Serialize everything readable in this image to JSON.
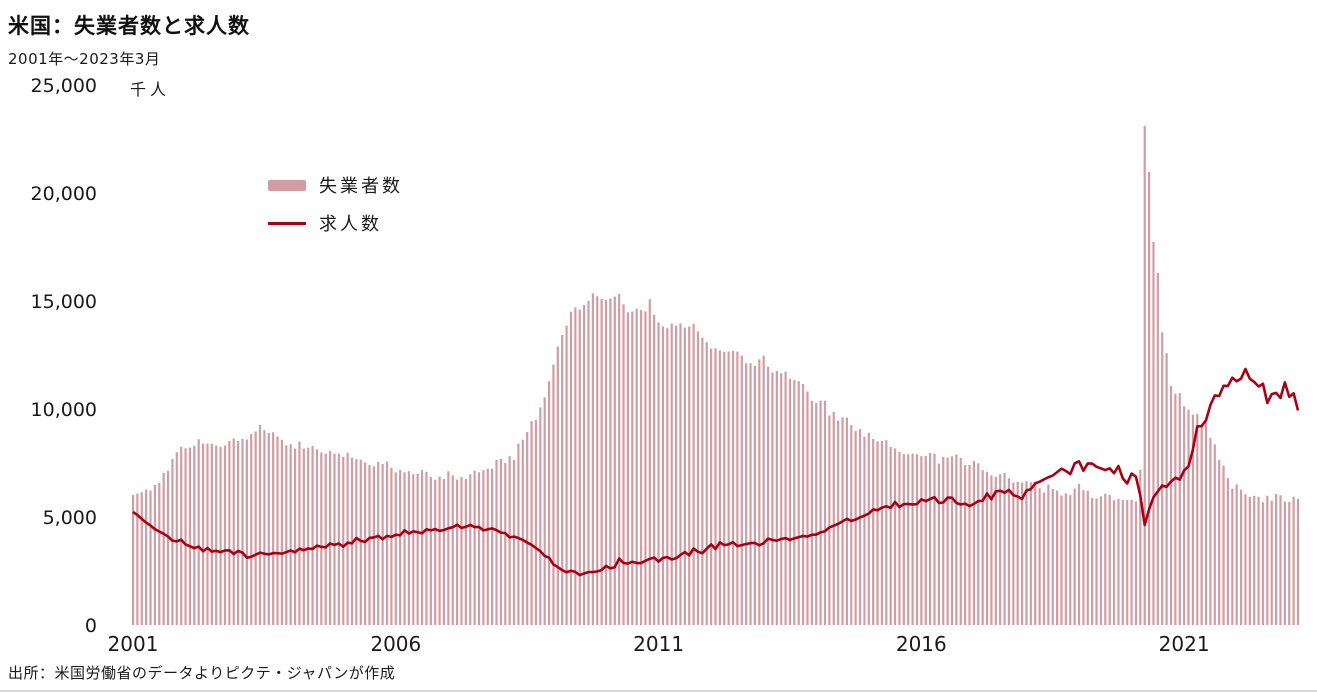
{
  "header": {
    "title": "米国：失業者数と求人数",
    "subtitle": "2001年～2023年3月",
    "unit": "千人"
  },
  "footer": {
    "source": "出所：米国労働省のデータよりピクテ・ジャパンが作成"
  },
  "colors": {
    "bar": "#cf9da3",
    "line": "#a80015",
    "text": "#1a1a1a"
  },
  "chart_data": {
    "type": "bar+line",
    "title": "米国：失業者数と求人数",
    "subtitle": "2001年～2023年3月",
    "ylabel": "千人",
    "xlabel": "",
    "frequency": "monthly",
    "x_start": "2001-01",
    "x_end": "2023-03",
    "ylim": [
      0,
      25000
    ],
    "y_ticks": [
      0,
      5000,
      10000,
      15000,
      20000,
      25000
    ],
    "x_ticks": [
      2001,
      2006,
      2011,
      2016,
      2021
    ],
    "grid": false,
    "legend_position": "top-left-inside",
    "series": [
      {
        "name": "失業者数",
        "type": "bar",
        "color": "#cf9da3",
        "values": [
          6023,
          6089,
          6141,
          6271,
          6226,
          6484,
          6583,
          7042,
          7142,
          7694,
          8003,
          8258,
          8182,
          8215,
          8304,
          8599,
          8399,
          8393,
          8390,
          8304,
          8251,
          8307,
          8520,
          8640,
          8520,
          8618,
          8588,
          8842,
          8957,
          9266,
          9011,
          8896,
          8921,
          8732,
          8576,
          8317,
          8370,
          8167,
          8491,
          8170,
          8212,
          8286,
          8136,
          7990,
          7927,
          8061,
          7932,
          7934,
          7784,
          7980,
          7737,
          7672,
          7651,
          7524,
          7406,
          7345,
          7553,
          7453,
          7566,
          7279,
          7064,
          7184,
          7072,
          7120,
          6980,
          7001,
          7175,
          7091,
          6847,
          6727,
          6872,
          6762,
          7116,
          6927,
          6731,
          6850,
          6766,
          6979,
          7149,
          7067,
          7170,
          7237,
          7240,
          7645,
          7685,
          7497,
          7822,
          7637,
          8395,
          8575,
          8937,
          9438,
          9494,
          10074,
          10538,
          11286,
          12058,
          12898,
          13426,
          13853,
          14499,
          14707,
          14601,
          14814,
          15009,
          15352,
          15219,
          15098,
          15046,
          15113,
          15202,
          15325,
          14849,
          14474,
          14512,
          14648,
          14579,
          14516,
          15081,
          14348,
          14013,
          13820,
          13737,
          13957,
          13855,
          13962,
          13763,
          13818,
          13948,
          13594,
          13302,
          13093,
          12797,
          12813,
          12713,
          12646,
          12660,
          12692,
          12656,
          12471,
          12115,
          12124,
          12005,
          12298,
          12470,
          11954,
          11689,
          11760,
          11654,
          11735,
          11398,
          11334,
          11285,
          11161,
          10814,
          10376,
          10280,
          10387,
          10384,
          9702,
          9859,
          9460,
          9608,
          9599,
          9262,
          8990,
          9071,
          8718,
          8903,
          8610,
          8504,
          8526,
          8555,
          8245,
          8176,
          8023,
          7915,
          7904,
          7935,
          7907,
          7820,
          7828,
          7962,
          7934,
          7467,
          7783,
          7751,
          7812,
          7901,
          7740,
          7409,
          7410,
          7596,
          7488,
          7173,
          7095,
          6929,
          6855,
          6978,
          7041,
          6796,
          6595,
          6620,
          6585,
          6657,
          6605,
          6562,
          6330,
          6139,
          6498,
          6297,
          6219,
          5999,
          6093,
          6023,
          6318,
          6525,
          6241,
          6206,
          5878,
          5857,
          5959,
          6081,
          6024,
          5779,
          5839,
          5786,
          5787,
          5796,
          5717,
          7185,
          23109,
          20975,
          17742,
          16301,
          13550,
          12580,
          11061,
          10710,
          10736,
          10120,
          9972,
          9740,
          9773,
          9255,
          9400,
          8668,
          8363,
          7653,
          7380,
          6801,
          6314,
          6513,
          6266,
          6055,
          5932,
          5983,
          5939,
          5687,
          5982,
          5753,
          6063,
          6011,
          5717,
          5694,
          5936,
          5839
        ]
      },
      {
        "name": "求人数",
        "type": "line",
        "color": "#a80015",
        "values": [
          5234,
          5091,
          4912,
          4742,
          4602,
          4436,
          4329,
          4221,
          4095,
          3902,
          3874,
          3948,
          3727,
          3650,
          3555,
          3631,
          3414,
          3565,
          3399,
          3434,
          3374,
          3451,
          3459,
          3287,
          3427,
          3350,
          3114,
          3160,
          3254,
          3351,
          3297,
          3271,
          3329,
          3327,
          3303,
          3377,
          3449,
          3366,
          3537,
          3462,
          3541,
          3522,
          3675,
          3619,
          3594,
          3772,
          3711,
          3773,
          3626,
          3810,
          3779,
          4029,
          3894,
          3846,
          4032,
          4054,
          4127,
          3970,
          4125,
          4078,
          4179,
          4152,
          4386,
          4233,
          4342,
          4296,
          4248,
          4432,
          4383,
          4441,
          4354,
          4399,
          4477,
          4526,
          4641,
          4496,
          4545,
          4631,
          4535,
          4540,
          4380,
          4429,
          4473,
          4391,
          4277,
          4253,
          4056,
          4091,
          4026,
          3937,
          3817,
          3714,
          3565,
          3416,
          3199,
          3120,
          2800,
          2684,
          2540,
          2441,
          2514,
          2458,
          2310,
          2386,
          2451,
          2453,
          2480,
          2542,
          2737,
          2623,
          2676,
          3076,
          2869,
          2842,
          2930,
          2869,
          2867,
          2972,
          3063,
          3121,
          2933,
          3107,
          3142,
          3035,
          3088,
          3243,
          3378,
          3226,
          3541,
          3384,
          3326,
          3534,
          3733,
          3516,
          3826,
          3694,
          3732,
          3833,
          3652,
          3697,
          3748,
          3791,
          3797,
          3690,
          3784,
          3999,
          3935,
          3902,
          3983,
          4022,
          3940,
          4012,
          4070,
          4122,
          4092,
          4178,
          4186,
          4290,
          4342,
          4516,
          4598,
          4682,
          4797,
          4916,
          4816,
          4883,
          4979,
          5061,
          5159,
          5351,
          5314,
          5434,
          5495,
          5425,
          5697,
          5460,
          5600,
          5598,
          5580,
          5596,
          5817,
          5734,
          5834,
          5917,
          5650,
          5671,
          5900,
          5896,
          5651,
          5579,
          5619,
          5505,
          5604,
          5739,
          5747,
          6088,
          5820,
          6184,
          6216,
          6123,
          6252,
          6013,
          5945,
          5836,
          6227,
          6288,
          6557,
          6631,
          6742,
          6840,
          6920,
          7077,
          7239,
          7131,
          6987,
          7479,
          7576,
          7142,
          7480,
          7474,
          7323,
          7252,
          7174,
          7253,
          7027,
          7361,
          6787,
          6552,
          7012,
          6866,
          5992,
          4629,
          5361,
          5914,
          6184,
          6457,
          6396,
          6638,
          6818,
          6731,
          7156,
          7344,
          8123,
          9193,
          9209,
          9480,
          10185,
          10629,
          10602,
          11075,
          11067,
          11448,
          11283,
          11408,
          11855,
          11400,
          11254,
          11040,
          11170,
          10280,
          10687,
          10746,
          10512,
          11234,
          10563,
          10725,
          9931
        ]
      }
    ]
  }
}
